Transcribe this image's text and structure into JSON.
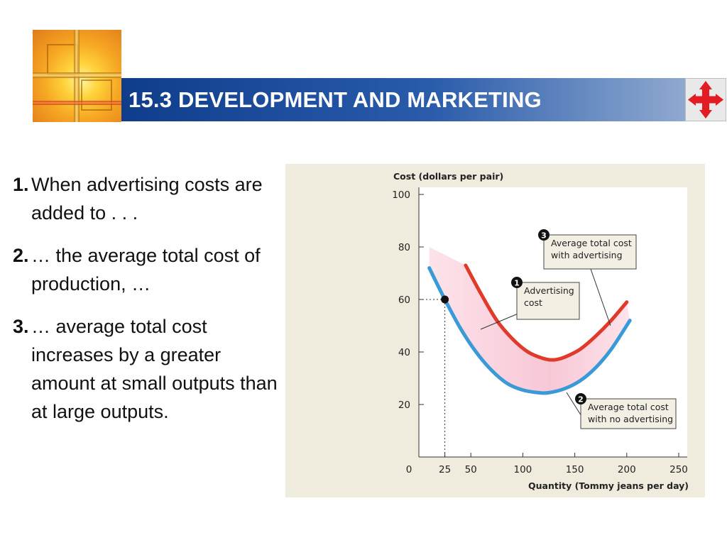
{
  "slide": {
    "title": "15.3 DEVELOPMENT AND MARKETING",
    "colors": {
      "title_band": "#1f4f9e",
      "title_text": "#ffffff",
      "nav_arrows": "#e31b23"
    },
    "nav_icon": "four-way-arrow-icon",
    "logo_icon": "cross-window-logo-icon"
  },
  "bullets": [
    {
      "num": "1.",
      "text": "When advertising costs are added to . . ."
    },
    {
      "num": "2.",
      "text": "… the average total cost of production, …"
    },
    {
      "num": "3.",
      "text": "… average total cost increases by a greater amount at small outputs than at large outputs."
    }
  ],
  "chart_data": {
    "type": "line",
    "title": "",
    "ylabel": "Cost (dollars per pair)",
    "xlabel": "Quantity (Tommy jeans per day)",
    "xlim": [
      0,
      250
    ],
    "ylim": [
      0,
      100
    ],
    "x_ticks": [
      "0",
      "25",
      "50",
      "100",
      "150",
      "200",
      "250"
    ],
    "y_ticks": [
      "20",
      "40",
      "60",
      "80",
      "100"
    ],
    "series": [
      {
        "name": "Average total cost with advertising",
        "color": "#e03a2a",
        "points": [
          [
            45,
            73
          ],
          [
            60,
            62
          ],
          [
            75,
            52
          ],
          [
            90,
            45
          ],
          [
            105,
            40
          ],
          [
            120,
            37.5
          ],
          [
            130,
            37
          ],
          [
            140,
            38
          ],
          [
            155,
            41
          ],
          [
            170,
            46
          ],
          [
            185,
            52
          ],
          [
            200,
            59
          ]
        ]
      },
      {
        "name": "Average total cost with no advertising",
        "color": "#3a9ad8",
        "points": [
          [
            10,
            72
          ],
          [
            25,
            60
          ],
          [
            40,
            49
          ],
          [
            55,
            40
          ],
          [
            70,
            33
          ],
          [
            85,
            28
          ],
          [
            100,
            25.5
          ],
          [
            115,
            24.5
          ],
          [
            125,
            24.5
          ],
          [
            140,
            26
          ],
          [
            155,
            29
          ],
          [
            170,
            34
          ],
          [
            185,
            41
          ],
          [
            203,
            52
          ]
        ]
      }
    ],
    "highlight_point": {
      "x": 25,
      "y": 60
    },
    "shaded_region": "Advertising cost band between the two curves",
    "annotations": [
      {
        "num": "1",
        "text": "Advertising cost"
      },
      {
        "num": "2",
        "text": "Average total cost with no advertising"
      },
      {
        "num": "3",
        "text": "Average total cost with advertising"
      }
    ]
  }
}
